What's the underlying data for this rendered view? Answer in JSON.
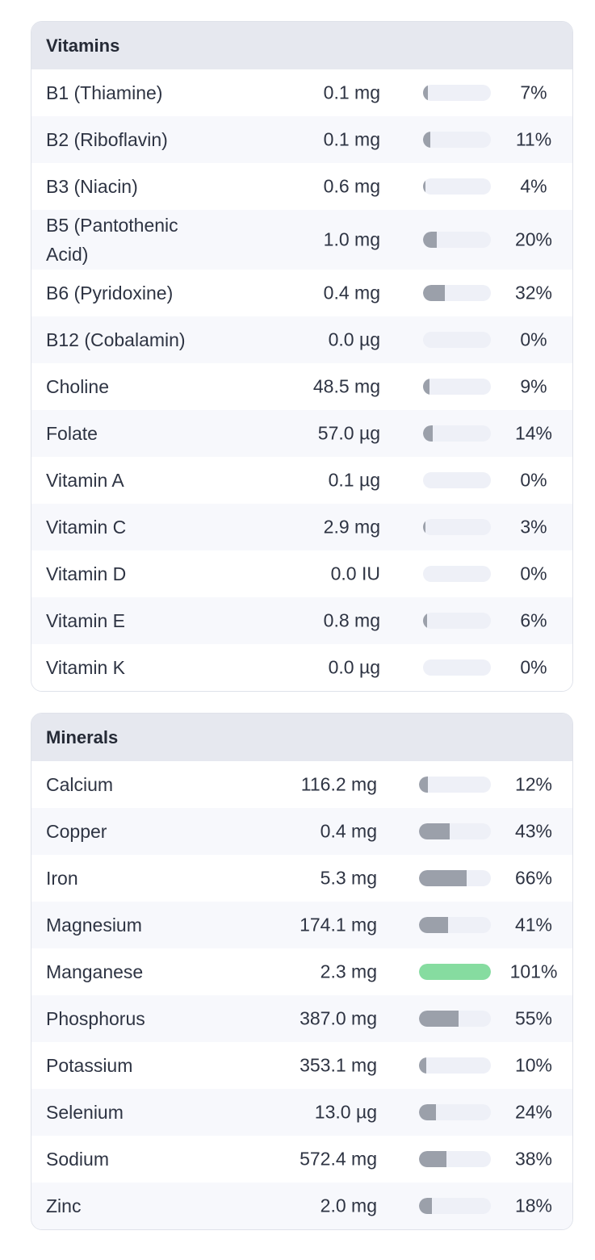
{
  "vitamins": {
    "title": "Vitamins",
    "rows": [
      {
        "name": "B1 (Thiamine)",
        "amount": "0.1 mg",
        "percent": "7%",
        "fill": 7
      },
      {
        "name": "B2 (Riboflavin)",
        "amount": "0.1 mg",
        "percent": "11%",
        "fill": 11
      },
      {
        "name": "B3 (Niacin)",
        "amount": "0.6 mg",
        "percent": "4%",
        "fill": 4
      },
      {
        "name": "B5 (Pantothenic Acid)",
        "amount": "1.0 mg",
        "percent": "20%",
        "fill": 20
      },
      {
        "name": "B6 (Pyridoxine)",
        "amount": "0.4 mg",
        "percent": "32%",
        "fill": 32
      },
      {
        "name": "B12 (Cobalamin)",
        "amount": "0.0 µg",
        "percent": "0%",
        "fill": 0
      },
      {
        "name": "Choline",
        "amount": "48.5 mg",
        "percent": "9%",
        "fill": 9
      },
      {
        "name": "Folate",
        "amount": "57.0 µg",
        "percent": "14%",
        "fill": 14
      },
      {
        "name": "Vitamin A",
        "amount": "0.1 µg",
        "percent": "0%",
        "fill": 0
      },
      {
        "name": "Vitamin C",
        "amount": "2.9 mg",
        "percent": "3%",
        "fill": 3
      },
      {
        "name": "Vitamin D",
        "amount": "0.0 IU",
        "percent": "0%",
        "fill": 0
      },
      {
        "name": "Vitamin E",
        "amount": "0.8 mg",
        "percent": "6%",
        "fill": 6
      },
      {
        "name": "Vitamin K",
        "amount": "0.0 µg",
        "percent": "0%",
        "fill": 0
      }
    ]
  },
  "minerals": {
    "title": "Minerals",
    "rows": [
      {
        "name": "Calcium",
        "amount": "116.2 mg",
        "percent": "12%",
        "fill": 12
      },
      {
        "name": "Copper",
        "amount": "0.4 mg",
        "percent": "43%",
        "fill": 43
      },
      {
        "name": "Iron",
        "amount": "5.3 mg",
        "percent": "66%",
        "fill": 66
      },
      {
        "name": "Magnesium",
        "amount": "174.1 mg",
        "percent": "41%",
        "fill": 41
      },
      {
        "name": "Manganese",
        "amount": "2.3 mg",
        "percent": "101%",
        "fill": 101
      },
      {
        "name": "Phosphorus",
        "amount": "387.0 mg",
        "percent": "55%",
        "fill": 55
      },
      {
        "name": "Potassium",
        "amount": "353.1 mg",
        "percent": "10%",
        "fill": 10
      },
      {
        "name": "Selenium",
        "amount": "13.0 µg",
        "percent": "24%",
        "fill": 24
      },
      {
        "name": "Sodium",
        "amount": "572.4 mg",
        "percent": "38%",
        "fill": 38
      },
      {
        "name": "Zinc",
        "amount": "2.0 mg",
        "percent": "18%",
        "fill": 18
      }
    ]
  },
  "colors": {
    "bar_fill": "#9ba0aa",
    "bar_fill_complete": "#86dca0",
    "bar_track": "#eef0f7",
    "header_bg": "#e6e8ef"
  }
}
